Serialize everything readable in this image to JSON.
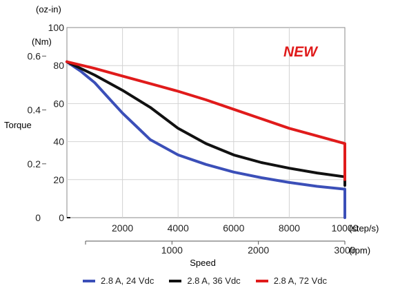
{
  "chart_data": {
    "type": "line",
    "title": "",
    "badge": "NEW",
    "xlabel": "Speed",
    "ylabel": "Torque",
    "x_unit_steps": "(step/s)",
    "x_unit_rpm": "(rpm)",
    "y_unit_ozin": "(oz-in)",
    "y_unit_nm": "(Nm)",
    "xlim": [
      0,
      10000
    ],
    "ylim": [
      0,
      100
    ],
    "x_ticks": [
      "2000",
      "4000",
      "6000",
      "8000",
      "10000"
    ],
    "x_tick_values": [
      2000,
      4000,
      6000,
      8000,
      10000
    ],
    "rpm_ticks": [
      "1000",
      "2000",
      "3000"
    ],
    "rpm_tick_values": [
      1000,
      2000,
      3000
    ],
    "rpm_max": 3000,
    "ozin_ticks": [
      "0",
      "20",
      "40",
      "60",
      "80",
      "100"
    ],
    "ozin_tick_values": [
      0,
      20,
      40,
      60,
      80,
      100
    ],
    "nm_ticks": [
      "0.2",
      "0.4",
      "0.6"
    ],
    "nm_tick_values": [
      0.2,
      0.4,
      0.6
    ],
    "nm_per_ozin": 0.00706,
    "grid": true,
    "legend_position": "bottom",
    "series": [
      {
        "name": "2.8 A, 24 Vdc",
        "color": "#3b4fb8",
        "x": [
          0,
          500,
          1000,
          1500,
          2000,
          2500,
          3000,
          4000,
          5000,
          6000,
          7000,
          8000,
          9000,
          10000,
          10000
        ],
        "y": [
          82,
          77,
          71,
          63,
          55,
          48,
          41,
          33,
          28,
          24,
          21,
          18.5,
          16.5,
          15,
          0
        ]
      },
      {
        "name": "2.8 A, 36 Vdc",
        "color": "#111111",
        "x": [
          0,
          1000,
          2000,
          3000,
          4000,
          5000,
          6000,
          7000,
          8000,
          9000,
          10000,
          10000
        ],
        "y": [
          82,
          75,
          67,
          58,
          47,
          39,
          33,
          29,
          26,
          23.5,
          21.5,
          17
        ]
      },
      {
        "name": "2.8 A, 72 Vdc",
        "color": "#e01b1b",
        "x": [
          0,
          1000,
          2000,
          3000,
          4000,
          5000,
          6000,
          7000,
          8000,
          9000,
          10000,
          10000
        ],
        "y": [
          82,
          78.5,
          74.5,
          70.5,
          66.5,
          62,
          57,
          52,
          47,
          43,
          39,
          20
        ]
      }
    ]
  }
}
